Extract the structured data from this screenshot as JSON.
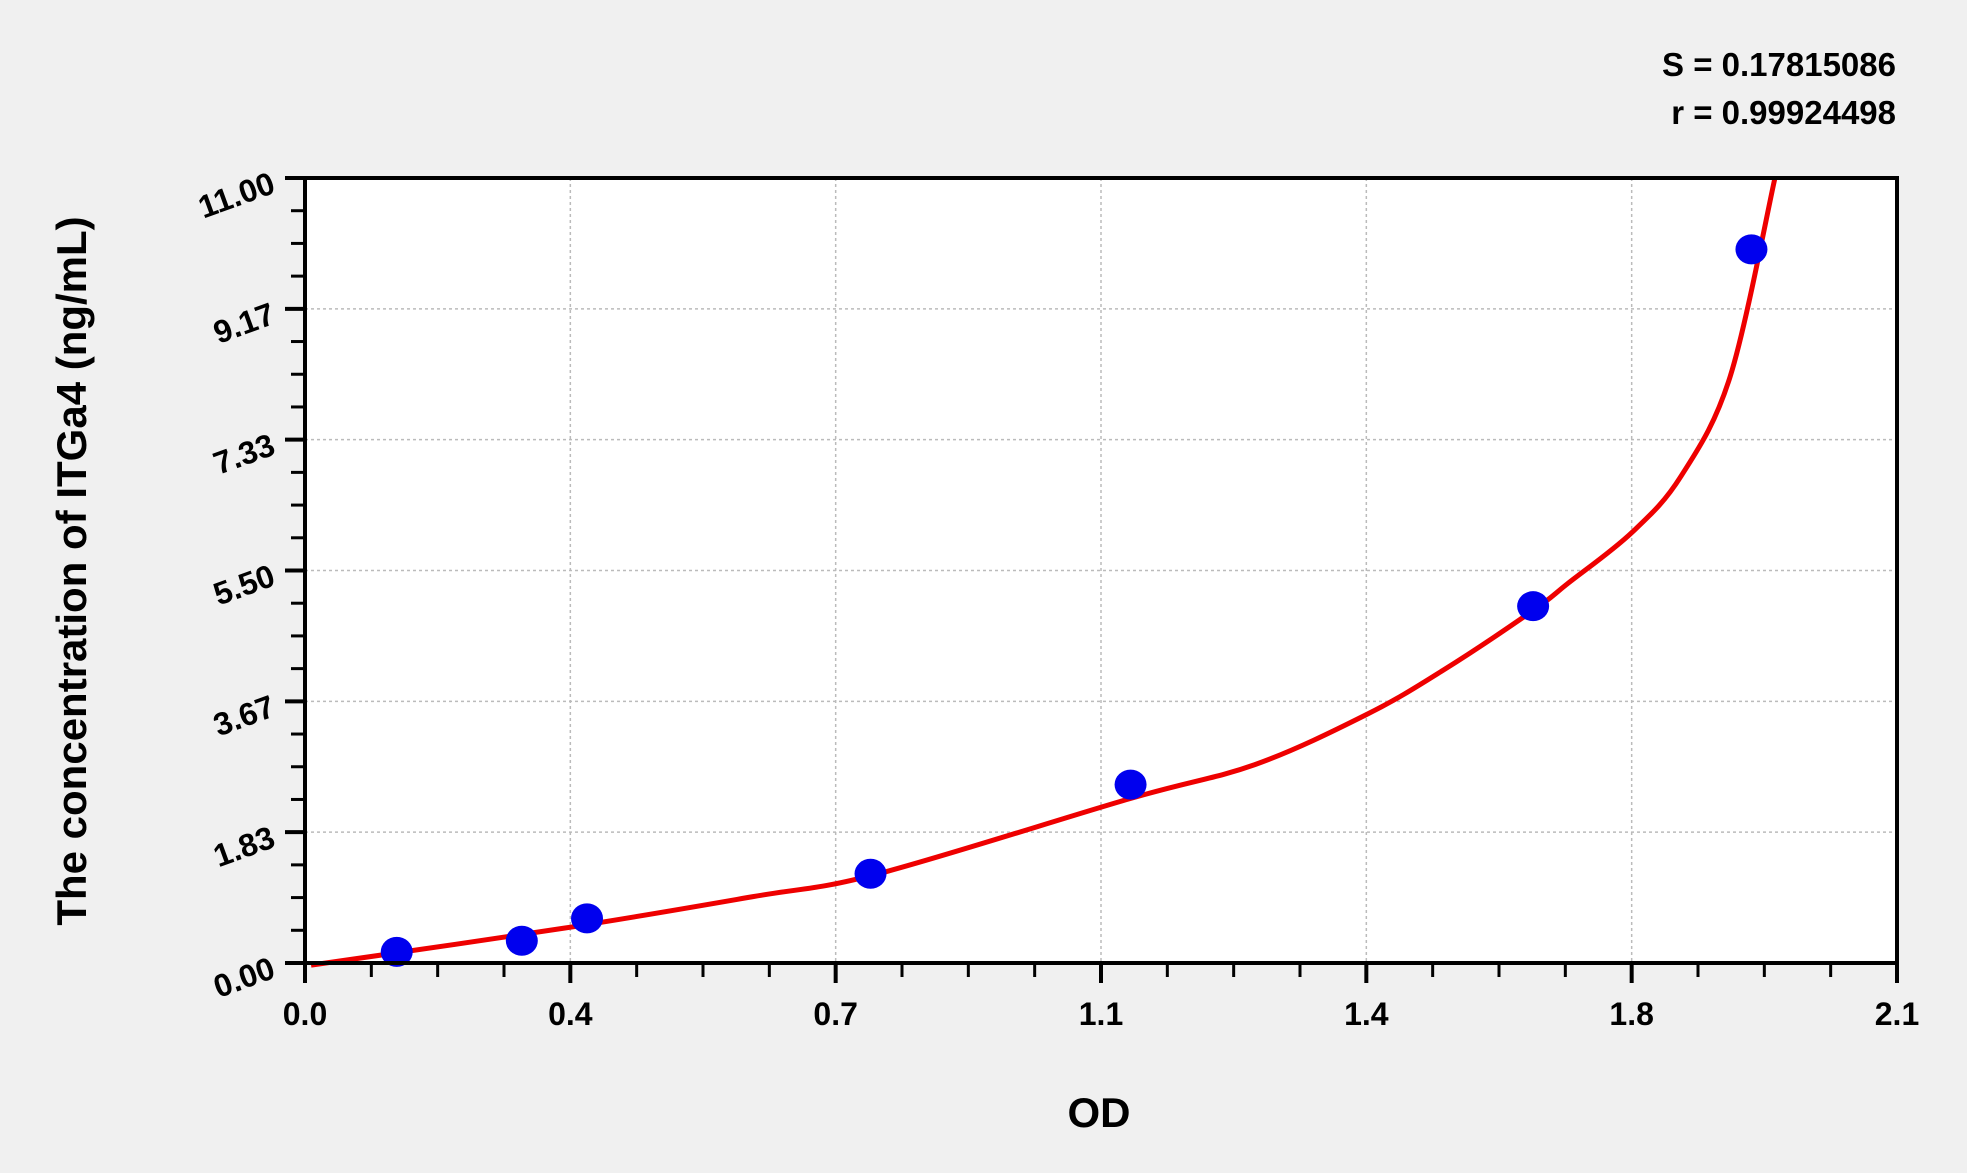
{
  "chart_data": {
    "type": "scatter",
    "xlabel": "OD",
    "ylabel": "The concentration of ITGa4 (ng/mL)",
    "xlim": [
      0,
      2.1
    ],
    "ylim": [
      0,
      11
    ],
    "x_ticks": [
      0,
      0.35,
      0.7,
      1.05,
      1.4,
      1.75,
      2.1
    ],
    "x_tick_labels": [
      "0.0",
      "0.4",
      "0.7",
      "1.1",
      "1.4",
      "1.8",
      "2.1"
    ],
    "y_ticks": [
      0,
      1.8333,
      3.6667,
      5.5,
      7.3333,
      9.1667,
      11
    ],
    "y_tick_labels": [
      "0.00",
      "1.83",
      "3.67",
      "5.50",
      "7.33",
      "9.17",
      "11.00"
    ],
    "grid": true,
    "stats": {
      "s_label": "S = 0.17815086",
      "r_label": "r = 0.99924498"
    },
    "points": {
      "color": "#0000ee",
      "x": [
        0.121,
        0.286,
        0.372,
        0.746,
        1.089,
        1.62,
        1.908
      ],
      "y": [
        0.156,
        0.312,
        0.625,
        1.25,
        2.5,
        5,
        10
      ]
    },
    "fit_curve": {
      "color": "#ee0000",
      "x": [
        0.008,
        0.343,
        0.591,
        0.756,
        1.087,
        1.253,
        1.4,
        1.501,
        1.62,
        1.666,
        1.75,
        1.815,
        1.88,
        1.939
      ],
      "y": [
        -0.03,
        0.49,
        0.93,
        1.25,
        2.3,
        2.78,
        3.48,
        4.1,
        4.94,
        5.32,
        6.03,
        6.82,
        8.22,
        11.0
      ]
    }
  }
}
